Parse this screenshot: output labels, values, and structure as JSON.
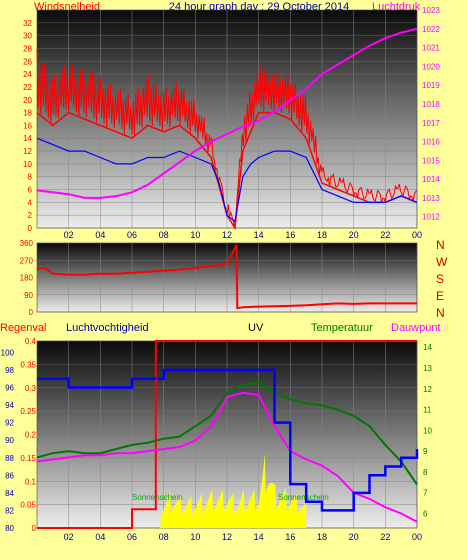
{
  "title": "24 hour graph day : 29 October 2014",
  "colors": {
    "background": "#FFFF99",
    "wind_speed": "#FF0000",
    "wind_gust": "#FF0000",
    "wind_avg": "#0000FF",
    "pressure": "#FF00FF",
    "direction": "#FF0000",
    "rain": "#FF0000",
    "humidity": "#0000FF",
    "temperature": "#007700",
    "dewpoint": "#FF00FF",
    "uv": "#FFFF00",
    "sunshine_label": "#00AA00"
  },
  "chart_data": [
    {
      "type": "line",
      "name": "wind-pressure",
      "ylabel_left": "Windsnelheid",
      "ylabel_right": "Luchtdruk",
      "x_ticks": [
        "02",
        "04",
        "06",
        "08",
        "10",
        "12",
        "14",
        "16",
        "18",
        "20",
        "22",
        "00"
      ],
      "y_left_ticks": [
        0,
        2,
        4,
        6,
        8,
        10,
        12,
        14,
        16,
        18,
        20,
        22,
        24,
        26,
        28,
        30,
        32
      ],
      "y_left_range": [
        0,
        34
      ],
      "y_right_ticks": [
        1012,
        1013,
        1014,
        1015,
        1016,
        1017,
        1018,
        1019,
        1020,
        1021,
        1022,
        1023
      ],
      "y_right_range": [
        1011.4,
        1023
      ],
      "x_range": [
        0,
        24
      ],
      "series": [
        {
          "key": "gust",
          "hours": [
            0,
            1,
            2,
            3,
            4,
            5,
            6,
            7,
            8,
            9,
            10,
            11,
            12,
            12.5,
            13,
            14,
            15,
            16,
            17,
            18,
            19,
            20,
            21,
            22,
            23,
            24
          ],
          "values": [
            28,
            24,
            26,
            25,
            24,
            22,
            21,
            24,
            22,
            23,
            20,
            15,
            3,
            1,
            18,
            26,
            25,
            24,
            21,
            10,
            8,
            7,
            6,
            6,
            7,
            6
          ]
        },
        {
          "key": "speed",
          "hours": [
            0,
            1,
            2,
            3,
            4,
            5,
            6,
            7,
            8,
            9,
            10,
            11,
            12,
            12.5,
            13,
            14,
            15,
            16,
            17,
            18,
            19,
            20,
            21,
            22,
            23,
            24
          ],
          "values": [
            18,
            16,
            18,
            17,
            16,
            15,
            14,
            16,
            15,
            16,
            14,
            11,
            2,
            0,
            12,
            18,
            18,
            17,
            14,
            7,
            6,
            5,
            4,
            4,
            5,
            4
          ]
        },
        {
          "key": "avg",
          "hours": [
            0,
            1,
            2,
            3,
            4,
            5,
            6,
            7,
            8,
            9,
            10,
            11,
            11.5,
            12,
            12.5,
            13,
            13.5,
            14,
            15,
            16,
            17,
            18,
            19,
            20,
            21,
            22,
            23,
            24
          ],
          "values": [
            14,
            13,
            12,
            12,
            11,
            10,
            10,
            11,
            11,
            12,
            11,
            10,
            7,
            2,
            1,
            8,
            10,
            11,
            12,
            12,
            11,
            6,
            5,
            4,
            4,
            4,
            5,
            4
          ]
        },
        {
          "key": "pressure",
          "hours": [
            0,
            1,
            2,
            3,
            4,
            5,
            6,
            7,
            8,
            9,
            10,
            11,
            12,
            13,
            14,
            15,
            16,
            17,
            18,
            19,
            20,
            21,
            22,
            23,
            24
          ],
          "values": [
            1013.4,
            1013.3,
            1013.2,
            1013.0,
            1013.0,
            1013.1,
            1013.3,
            1013.7,
            1014.3,
            1014.9,
            1015.5,
            1016.0,
            1016.4,
            1016.8,
            1017.1,
            1017.6,
            1018.2,
            1018.8,
            1019.6,
            1020.1,
            1020.6,
            1021.1,
            1021.5,
            1021.8,
            1022.0
          ]
        }
      ]
    },
    {
      "type": "line",
      "name": "wind-direction",
      "y_ticks": [
        0,
        90,
        180,
        270,
        360
      ],
      "y_range": [
        0,
        360
      ],
      "compass": [
        "N",
        "W",
        "S",
        "E",
        "N"
      ],
      "x_range": [
        0,
        24
      ],
      "series": [
        {
          "key": "direction",
          "hours": [
            0,
            0.5,
            1,
            2,
            3,
            4,
            5,
            6,
            7,
            8,
            9,
            10,
            11,
            12,
            12.6,
            12.65,
            13,
            14,
            15,
            16,
            17,
            18,
            19,
            20,
            21,
            22,
            23,
            24
          ],
          "values": [
            225,
            230,
            200,
            195,
            195,
            200,
            200,
            205,
            210,
            215,
            220,
            230,
            240,
            250,
            350,
            20,
            25,
            28,
            30,
            32,
            35,
            40,
            45,
            42,
            45,
            45,
            45,
            45
          ]
        }
      ]
    },
    {
      "type": "line",
      "name": "rain-humidity-uv-temperature-dewpoint",
      "labels": {
        "rain": "Regenval",
        "humidity": "Luchtvochtigheid",
        "uv": "UV",
        "temperature": "Temperatuur",
        "dewpoint": "Dauwpunt"
      },
      "sunshine_label": "Sonnenschein",
      "x_ticks": [
        "02",
        "04",
        "06",
        "08",
        "10",
        "12",
        "14",
        "16",
        "18",
        "20",
        "22",
        "00"
      ],
      "rain_ticks": [
        0,
        0.05,
        0.1,
        0.15,
        0.2,
        0.25,
        0.3,
        0.35,
        0.4
      ],
      "rain_range": [
        0,
        0.4
      ],
      "humidity_ticks": [
        80,
        82,
        84,
        86,
        88,
        90,
        92,
        94,
        96,
        98,
        100
      ],
      "humidity_range": [
        80,
        101.3
      ],
      "temp_ticks": [
        6,
        7,
        8,
        9,
        10,
        11,
        12,
        13,
        14
      ],
      "temp_range": [
        5.3,
        14.3
      ],
      "x_range": [
        0,
        24
      ],
      "series": [
        {
          "key": "rain",
          "hours": [
            0,
            6,
            6,
            7.5,
            7.5,
            24
          ],
          "values": [
            0,
            0,
            0.04,
            0.04,
            0.4,
            0.4
          ]
        },
        {
          "key": "humidity",
          "hours": [
            0,
            1,
            2,
            3,
            4,
            5,
            6,
            7,
            8,
            9,
            10,
            11,
            12,
            13,
            14,
            15,
            16,
            17,
            18,
            19,
            20,
            21,
            22,
            23,
            24
          ],
          "values": [
            97,
            97,
            96,
            96,
            96,
            96,
            97,
            97,
            98,
            98,
            98,
            98,
            98,
            98,
            98,
            92,
            85,
            83,
            82,
            82,
            84,
            86,
            87,
            88,
            89
          ]
        },
        {
          "key": "temperature",
          "hours": [
            0,
            1,
            2,
            3,
            4,
            5,
            6,
            7,
            8,
            9,
            10,
            11,
            12,
            13,
            14,
            15,
            16,
            17,
            18,
            19,
            20,
            21,
            22,
            23,
            24
          ],
          "values": [
            8.7,
            8.9,
            9.0,
            8.9,
            8.9,
            9.1,
            9.3,
            9.4,
            9.6,
            9.7,
            10.2,
            10.7,
            11.8,
            12.2,
            12.3,
            11.8,
            11.5,
            11.3,
            11.2,
            11.0,
            10.7,
            10.2,
            9.3,
            8.5,
            7.4
          ]
        },
        {
          "key": "dewpoint",
          "hours": [
            0,
            1,
            2,
            3,
            4,
            5,
            6,
            7,
            8,
            9,
            10,
            11,
            12,
            13,
            14,
            15,
            16,
            17,
            18,
            19,
            20,
            21,
            22,
            23,
            24
          ],
          "values": [
            8.5,
            8.6,
            8.7,
            8.8,
            8.8,
            8.9,
            8.9,
            9.0,
            9.1,
            9.2,
            9.5,
            10.2,
            11.6,
            11.8,
            11.7,
            10.2,
            9.0,
            8.6,
            8.3,
            7.8,
            7.0,
            6.7,
            6.3,
            6.0,
            5.6
          ]
        },
        {
          "key": "uv",
          "hours": [
            7.8,
            8.5,
            9,
            10,
            11,
            12,
            12.7,
            13,
            14,
            14.5,
            15,
            16,
            17
          ],
          "values": [
            0.04,
            0.06,
            0.05,
            0.05,
            0.06,
            0.06,
            0.05,
            0.06,
            0.06,
            0.13,
            0.07,
            0.06,
            0.04
          ]
        }
      ]
    }
  ]
}
